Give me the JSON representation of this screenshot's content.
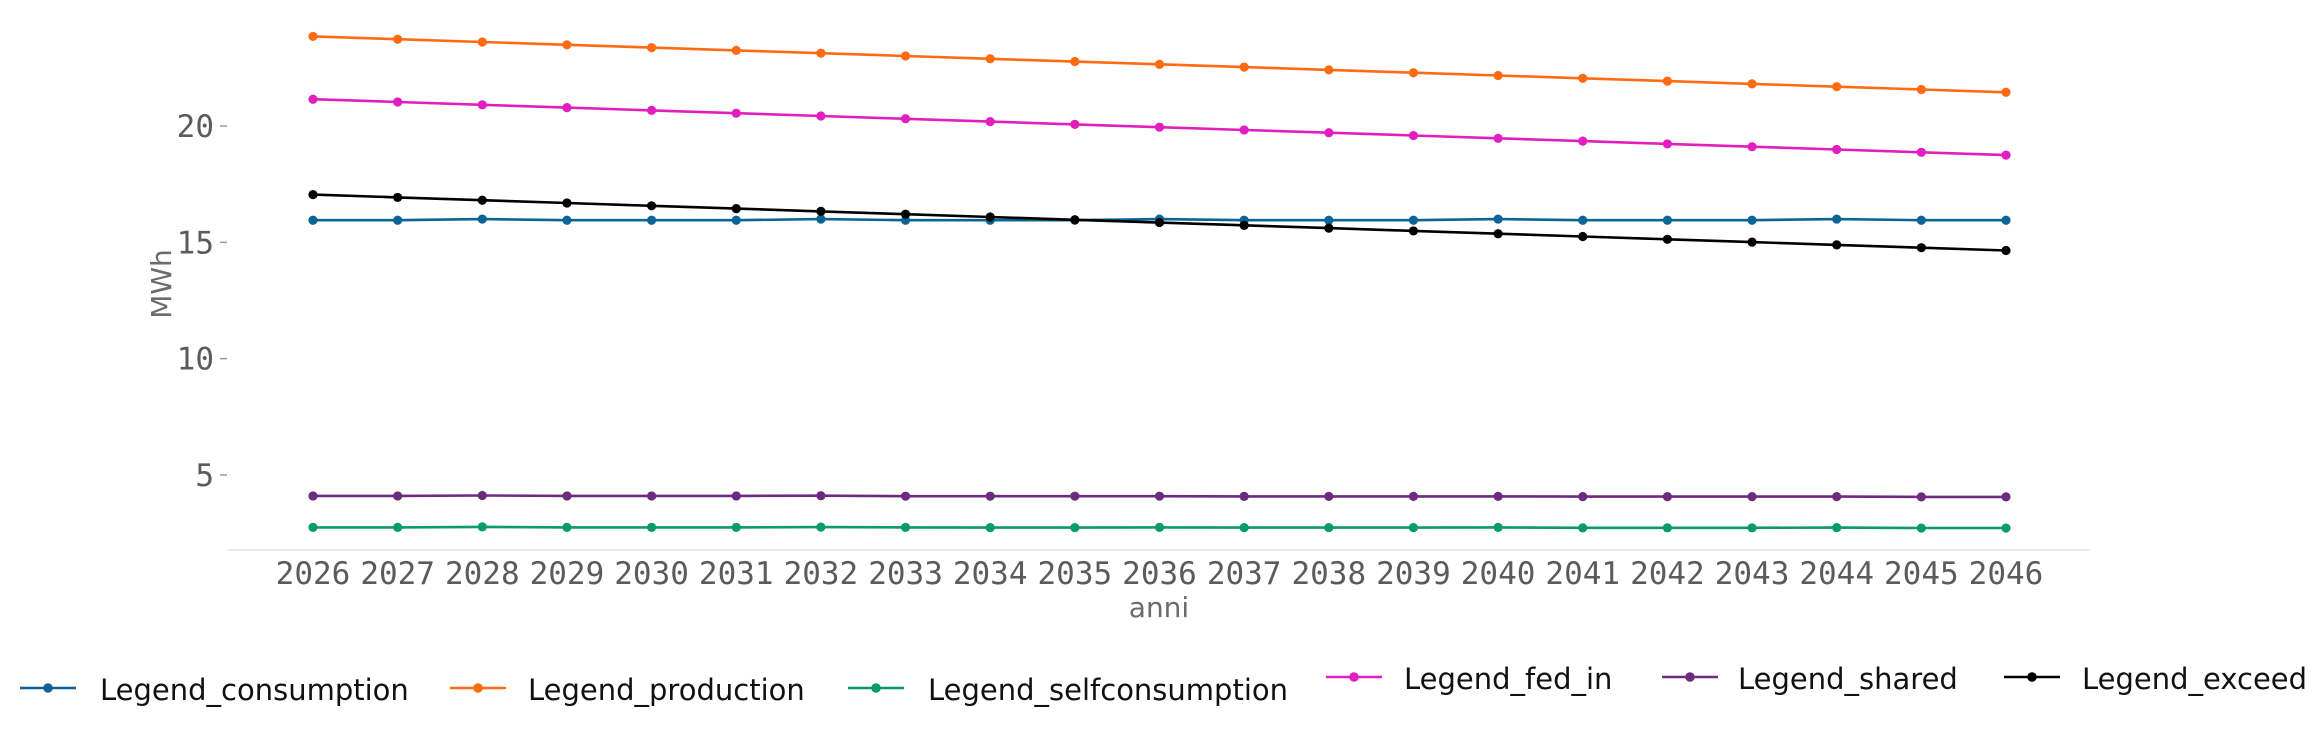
{
  "chart_data": {
    "type": "line",
    "title": "",
    "xlabel": "anni",
    "ylabel": "MWh",
    "x": [
      "2026",
      "2027",
      "2028",
      "2029",
      "2030",
      "2031",
      "2032",
      "2033",
      "2034",
      "2035",
      "2036",
      "2037",
      "2038",
      "2039",
      "2040",
      "2041",
      "2042",
      "2043",
      "2044",
      "2045",
      "2046"
    ],
    "yticks": [
      "5",
      "10",
      "15",
      "20"
    ],
    "ylim": [
      1.7,
      24.5
    ],
    "grid": false,
    "legend_position": "bottom",
    "series": [
      {
        "name": "Legend_consumption",
        "color": "#0a6495",
        "values": [
          15.95,
          15.95,
          16.0,
          15.95,
          15.95,
          15.95,
          16.0,
          15.95,
          15.95,
          15.95,
          16.0,
          15.95,
          15.95,
          15.95,
          16.0,
          15.95,
          15.95,
          15.95,
          16.0,
          15.95,
          15.95
        ]
      },
      {
        "name": "Legend_production",
        "color": "#ff6a12",
        "values": [
          23.85,
          23.73,
          23.61,
          23.49,
          23.37,
          23.25,
          23.13,
          23.01,
          22.89,
          22.77,
          22.65,
          22.53,
          22.41,
          22.29,
          22.17,
          22.05,
          21.93,
          21.81,
          21.69,
          21.57,
          21.45
        ]
      },
      {
        "name": "Legend_selfconsumption",
        "color": "#0a9b6a",
        "values": [
          2.75,
          2.75,
          2.77,
          2.75,
          2.75,
          2.75,
          2.76,
          2.75,
          2.74,
          2.74,
          2.75,
          2.74,
          2.74,
          2.74,
          2.75,
          2.73,
          2.73,
          2.73,
          2.74,
          2.72,
          2.72
        ]
      },
      {
        "name": "Legend_fed_in",
        "color": "#e21ec0",
        "values": [
          21.15,
          21.03,
          20.91,
          20.79,
          20.67,
          20.55,
          20.43,
          20.31,
          20.19,
          20.07,
          19.95,
          19.83,
          19.71,
          19.59,
          19.47,
          19.35,
          19.23,
          19.11,
          18.99,
          18.87,
          18.75
        ]
      },
      {
        "name": "Legend_shared",
        "color": "#6c2b7e",
        "values": [
          4.1,
          4.1,
          4.12,
          4.1,
          4.1,
          4.1,
          4.11,
          4.09,
          4.09,
          4.09,
          4.09,
          4.08,
          4.08,
          4.08,
          4.08,
          4.07,
          4.07,
          4.07,
          4.07,
          4.06,
          4.06
        ]
      },
      {
        "name": "Legend_exceed",
        "color": "#000000",
        "values": [
          17.05,
          16.93,
          16.81,
          16.69,
          16.57,
          16.45,
          16.33,
          16.21,
          16.09,
          15.97,
          15.85,
          15.73,
          15.61,
          15.49,
          15.37,
          15.25,
          15.13,
          15.01,
          14.89,
          14.77,
          14.65
        ]
      }
    ]
  }
}
